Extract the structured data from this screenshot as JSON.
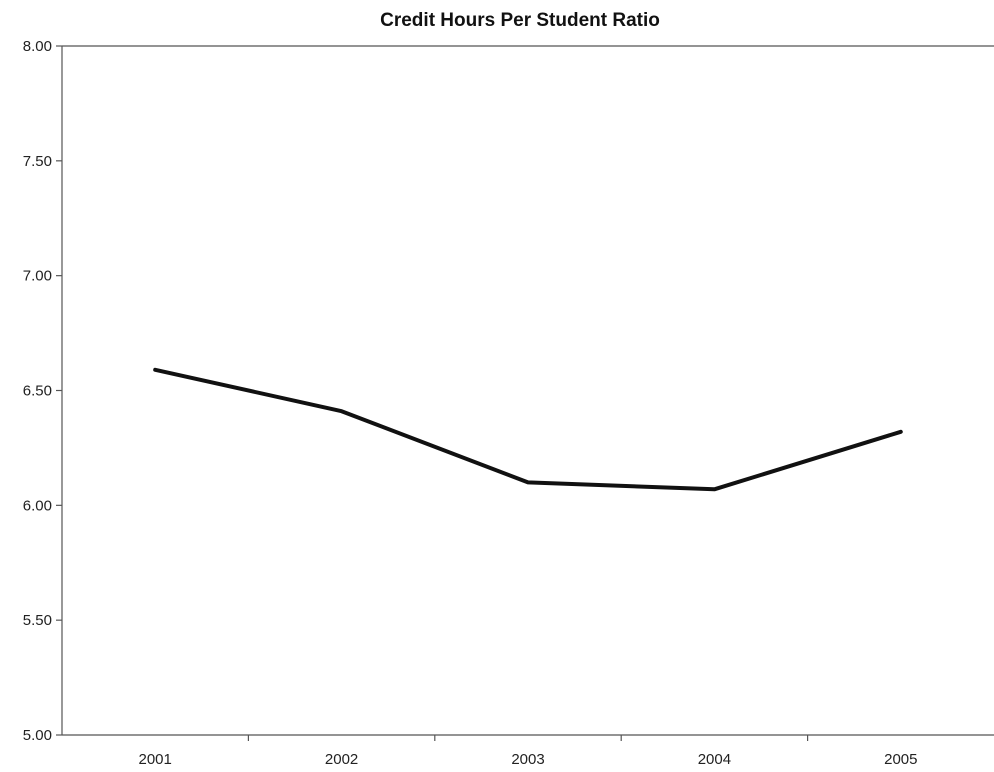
{
  "chart_data": {
    "type": "line",
    "title": "Credit Hours Per Student Ratio",
    "xlabel": "",
    "ylabel": "",
    "categories": [
      "2001",
      "2002",
      "2003",
      "2004",
      "2005"
    ],
    "series": [
      {
        "values": [
          6.59,
          6.41,
          6.1,
          6.07,
          6.32
        ]
      }
    ],
    "ylim": [
      5.0,
      8.0
    ],
    "yticks": [
      "8.00",
      "7.50",
      "7.00",
      "6.50",
      "6.00",
      "5.50",
      "5.00"
    ],
    "grid": false,
    "legend": "none",
    "colors": {
      "line": "#111111",
      "axis": "#555555",
      "background": "#ffffff"
    }
  }
}
